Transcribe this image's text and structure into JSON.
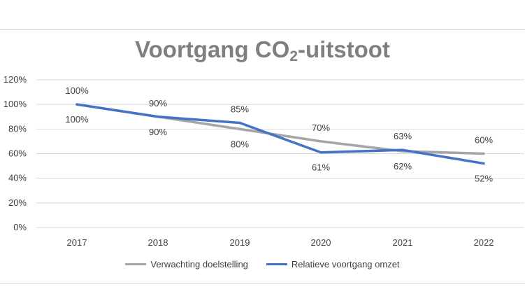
{
  "chart_data": {
    "type": "line",
    "title_parts": [
      "Voortgang CO",
      "2",
      "-uitstoot"
    ],
    "categories": [
      "2017",
      "2018",
      "2019",
      "2020",
      "2021",
      "2022"
    ],
    "y_ticks": [
      "0%",
      "20%",
      "40%",
      "60%",
      "80%",
      "100%",
      "120%"
    ],
    "ylim": [
      0,
      120
    ],
    "grid": true,
    "legend_position": "bottom",
    "series": [
      {
        "name": "Verwachting doelstelling",
        "color": "#a5a5a5",
        "values": [
          100,
          90,
          80,
          70,
          62,
          60
        ],
        "labels": [
          "100%",
          "90%",
          "80%",
          "70%",
          "62%",
          "60%"
        ]
      },
      {
        "name": "Relatieve voortgang omzet",
        "color": "#4472c4",
        "values": [
          100,
          90,
          85,
          61,
          63,
          52
        ],
        "labels": [
          "100%",
          "90%",
          "85%",
          "61%",
          "63%",
          "52%"
        ]
      }
    ]
  }
}
